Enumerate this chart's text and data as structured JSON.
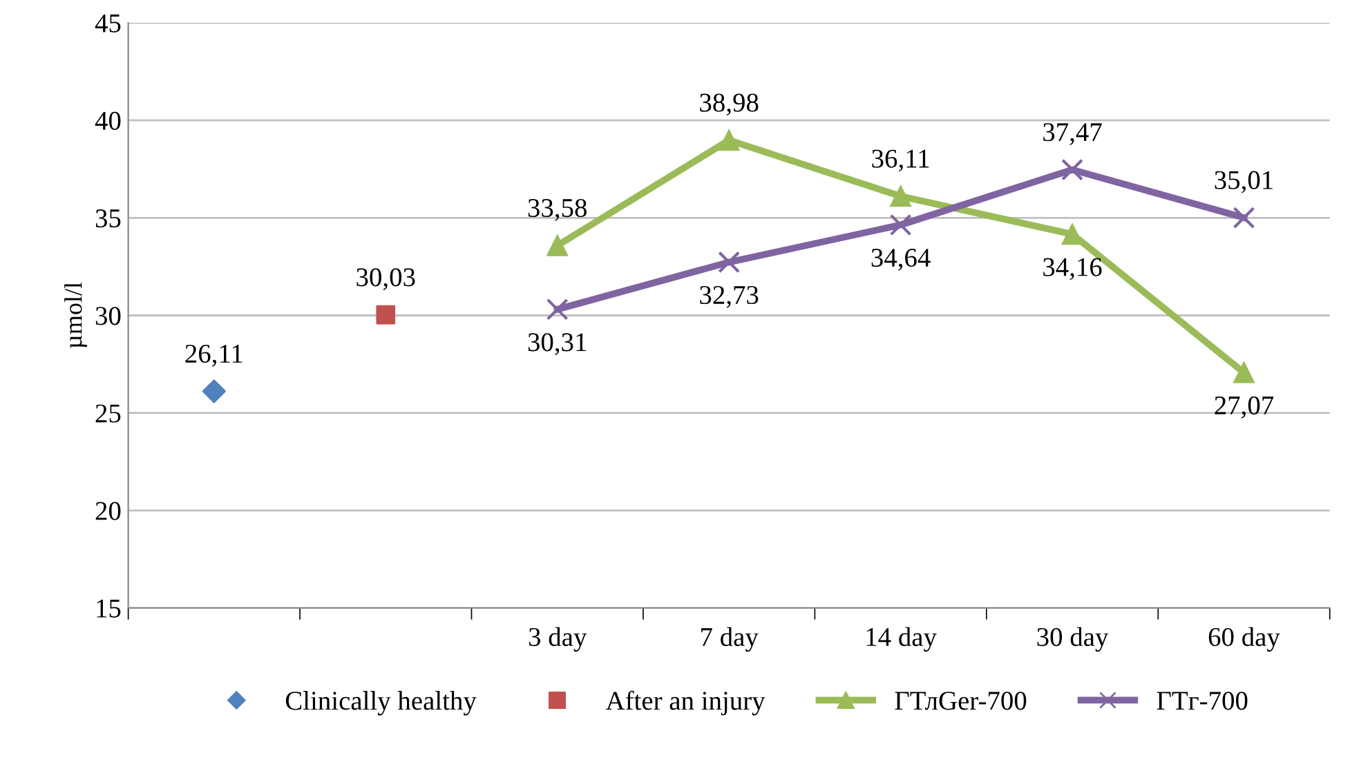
{
  "chart_data": {
    "type": "line",
    "ylabel": "µmol/l",
    "categories": [
      null,
      null,
      "3 day",
      "7 day",
      "14 day",
      "30 day",
      "60 day"
    ],
    "series": [
      {
        "name": "Clinically healthy",
        "type": "scatter",
        "marker": "diamond",
        "color": "#4f81bd",
        "values": [
          26.11,
          null,
          null,
          null,
          null,
          null,
          null
        ],
        "value_labels": [
          "26,11",
          null,
          null,
          null,
          null,
          null,
          null
        ]
      },
      {
        "name": "After an injury",
        "type": "scatter",
        "marker": "square",
        "color": "#c0504d",
        "values": [
          null,
          30.03,
          null,
          null,
          null,
          null,
          null
        ],
        "value_labels": [
          null,
          "30,03",
          null,
          null,
          null,
          null,
          null
        ]
      },
      {
        "name": "ГТлGer-700",
        "marker": "triangle",
        "color": "#9bbb59",
        "values": [
          null,
          null,
          33.58,
          38.98,
          36.11,
          34.16,
          27.07
        ],
        "value_labels": [
          null,
          null,
          "33,58",
          "38,98",
          "36,11",
          "34,16",
          "27,07"
        ]
      },
      {
        "name": "ГТг-700",
        "marker": "cross",
        "color": "#8064a2",
        "values": [
          null,
          null,
          30.31,
          32.73,
          34.64,
          37.47,
          35.01
        ],
        "value_labels": [
          null,
          null,
          "30,31",
          "32,73",
          "34,64",
          "37,47",
          "35,01"
        ]
      }
    ],
    "ylim": [
      15,
      45
    ],
    "yticks": [
      15,
      20,
      25,
      30,
      35,
      40,
      45
    ],
    "grid": "y",
    "legend": "bottom"
  }
}
